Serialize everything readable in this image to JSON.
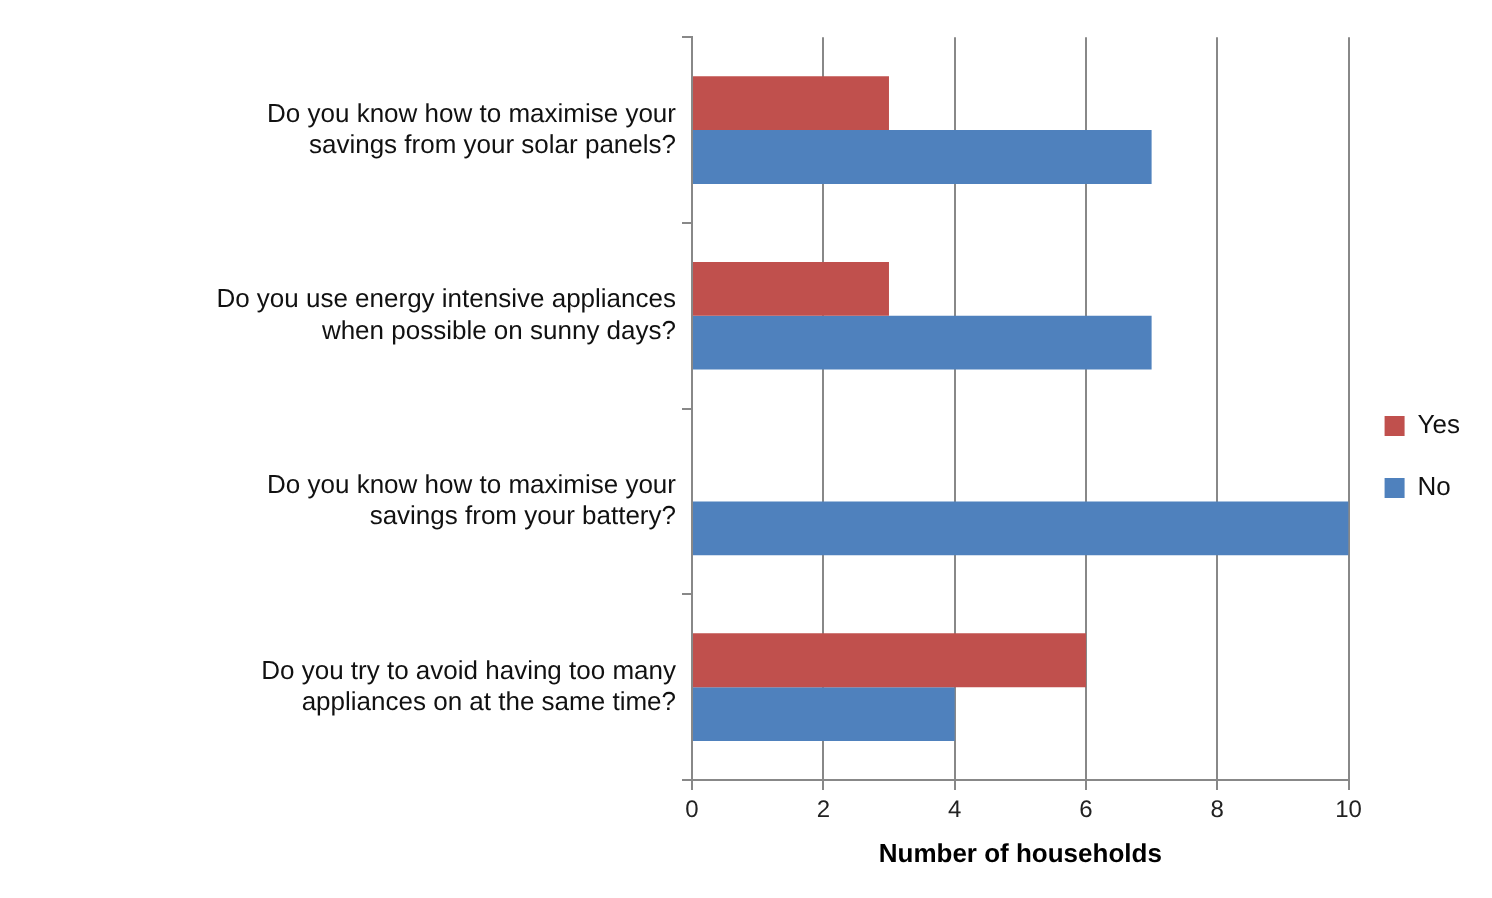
{
  "chart_data": {
    "type": "bar",
    "orientation": "horizontal",
    "categories": [
      "Do you know how to maximise your savings from your solar panels?",
      "Do you use energy intensive appliances when possible on sunny days?",
      "Do you know how to maximise your savings from your battery?",
      "Do you try to avoid having too many appliances on at the same time?"
    ],
    "series": [
      {
        "name": "Yes",
        "color": "#c0504d",
        "values": [
          3,
          3,
          0,
          6
        ]
      },
      {
        "name": "No",
        "color": "#4f81bd",
        "values": [
          7,
          7,
          10,
          4
        ]
      }
    ],
    "xlabel": "Number of households",
    "xlim": [
      0,
      10
    ],
    "xticks": [
      0,
      2,
      4,
      6,
      8,
      10
    ],
    "grid": "x",
    "legend": "right"
  }
}
